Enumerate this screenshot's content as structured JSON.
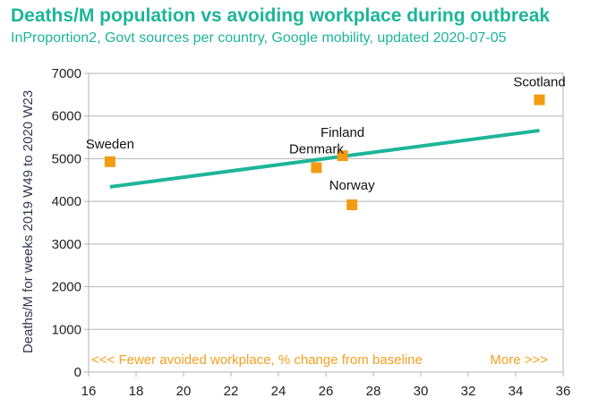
{
  "header": {
    "title": "Deaths/M population vs avoiding workplace during outbreak",
    "subtitle": "InProportion2, Govt sources per country, Google mobility, updated 2020-07-05"
  },
  "colors": {
    "title": "#1db598",
    "points": "#f39c12",
    "trendline": "#1db598",
    "notes": "#f5a01f",
    "grid": "#b3b3b3"
  },
  "chart_data": {
    "type": "scatter",
    "title": "Deaths/M population vs avoiding workplace during outbreak",
    "subtitle": "InProportion2, Govt sources per country, Google mobility, updated 2020-07-05",
    "xlabel": "",
    "ylabel": "Deaths/M for weeks 2019 W49 to 2020 W23",
    "xlim": [
      16,
      36
    ],
    "ylim": [
      0,
      7000
    ],
    "xticks": [
      "16",
      "18",
      "20",
      "22",
      "24",
      "26",
      "28",
      "30",
      "32",
      "34",
      "36"
    ],
    "yticks": [
      "0",
      "1000",
      "2000",
      "3000",
      "4000",
      "5000",
      "6000",
      "7000"
    ],
    "grid": "horizontal",
    "legend": "none",
    "points": [
      {
        "label": "Sweden",
        "x": 16.9,
        "y": 4930
      },
      {
        "label": "Denmark",
        "x": 25.6,
        "y": 4790
      },
      {
        "label": "Finland",
        "x": 26.7,
        "y": 5070
      },
      {
        "label": "Norway",
        "x": 27.1,
        "y": 3920
      },
      {
        "label": "Scotland",
        "x": 35.0,
        "y": 6380
      }
    ],
    "trendline": {
      "x": [
        16.9,
        35.0
      ],
      "y": [
        4340,
        5660
      ]
    },
    "annotations": {
      "left": "<<< Fewer avoided workplace, % change from baseline",
      "right": "More >>>"
    }
  }
}
